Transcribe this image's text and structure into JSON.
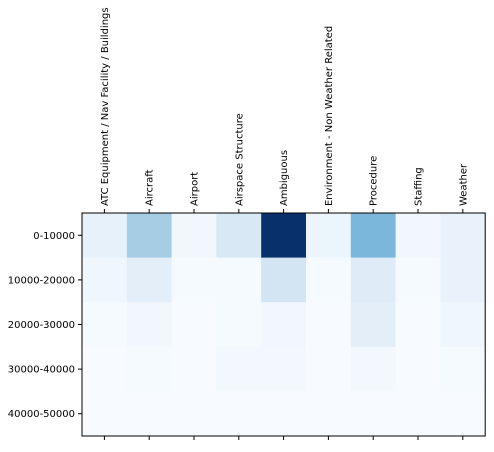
{
  "chart_data": {
    "type": "heatmap",
    "x_categories": [
      "ATC Equipment / Nav Facility / Buildings",
      "Aircraft",
      "Airport",
      "Airspace Structure",
      "Ambiguous",
      "Environment - Non Weather Related",
      "Procedure",
      "Staffing",
      "Weather"
    ],
    "y_categories": [
      "0-10000",
      "10000-20000",
      "20000-30000",
      "30000-40000",
      "40000-50000"
    ],
    "values": [
      [
        0.08,
        0.35,
        0.03,
        0.15,
        1.0,
        0.05,
        0.46,
        0.03,
        0.07
      ],
      [
        0.04,
        0.1,
        0.01,
        0.01,
        0.18,
        0.01,
        0.12,
        0.01,
        0.07
      ],
      [
        0.01,
        0.03,
        0.0,
        0.01,
        0.03,
        0.0,
        0.1,
        0.0,
        0.04
      ],
      [
        0.0,
        0.01,
        0.0,
        0.02,
        0.02,
        0.0,
        0.02,
        0.0,
        0.01
      ],
      [
        0.0,
        0.0,
        0.0,
        0.0,
        0.0,
        0.0,
        0.0,
        0.0,
        0.0
      ]
    ],
    "colormap": "Blues",
    "x_tick_position": "top",
    "title": "",
    "xlabel": "",
    "ylabel": "",
    "grid": false,
    "legend": "none"
  }
}
